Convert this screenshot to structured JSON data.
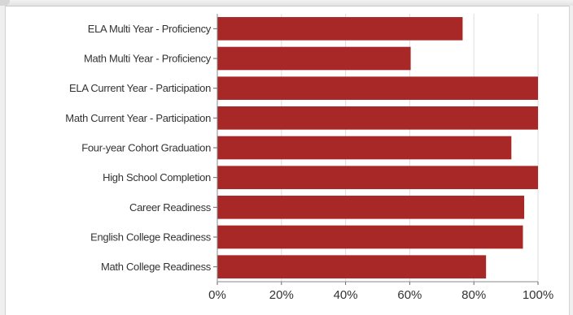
{
  "chart_data": {
    "type": "bar",
    "orientation": "horizontal",
    "categories": [
      "ELA Multi Year - Proficiency",
      "Math Multi Year - Proficiency",
      "ELA Current Year - Participation",
      "Math Current Year - Participation",
      "Four-year Cohort Graduation",
      "High School Completion",
      "Career Readiness",
      "English College Readiness",
      "Math College Readiness"
    ],
    "values": [
      76.5,
      60.3,
      100,
      100,
      91.7,
      100,
      95.7,
      95.3,
      83.8
    ],
    "x_ticks": [
      "0%",
      "20%",
      "40%",
      "60%",
      "80%",
      "100%"
    ],
    "xlim": [
      0,
      100
    ],
    "bar_color": "#a82828",
    "grid": "vertical",
    "legend": "none"
  }
}
